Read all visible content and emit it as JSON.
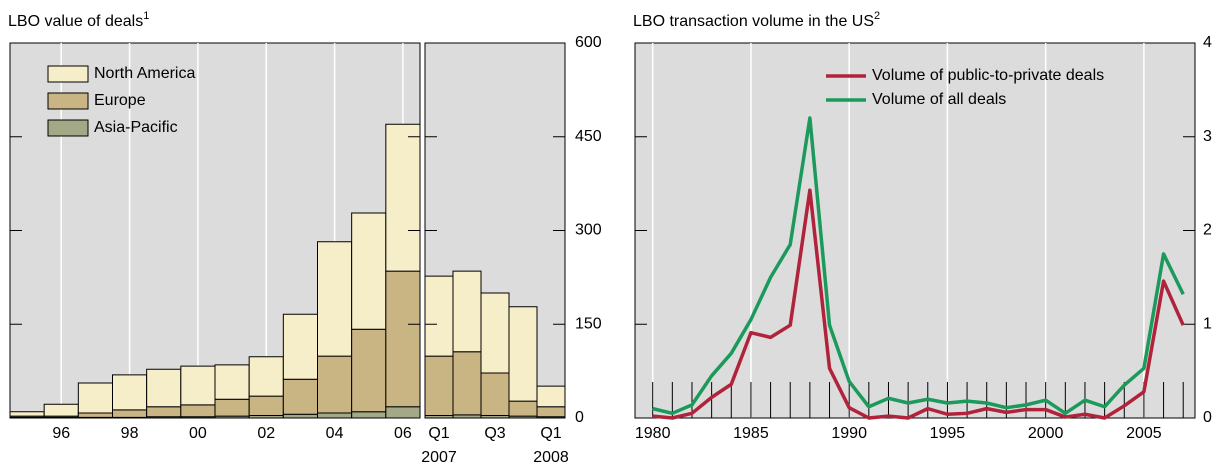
{
  "chart_data": [
    {
      "type": "stacked_bar",
      "title": "LBO value of deals",
      "title_footnote": "1",
      "categories": [
        null,
        "96",
        null,
        "98",
        null,
        "00",
        null,
        "02",
        null,
        "04",
        null,
        "06"
      ],
      "series": [
        {
          "name": "Asia-Pacific",
          "color": "#a3a986",
          "values": [
            1,
            1,
            1,
            1,
            2,
            2,
            3,
            4,
            6,
            8,
            10,
            18
          ]
        },
        {
          "name": "Europe",
          "color": "#c9b584",
          "values": [
            2,
            2,
            7,
            12,
            16,
            19,
            27,
            31,
            56,
            91,
            132,
            217
          ]
        },
        {
          "name": "North America",
          "color": "#f6eec9",
          "values": [
            7,
            19,
            48,
            56,
            60,
            62,
            55,
            63,
            104,
            183,
            186,
            235
          ]
        }
      ],
      "ylim": [
        0,
        600
      ],
      "grid": true
    },
    {
      "type": "stacked_bar",
      "categories": [
        "Q1",
        null,
        "Q3",
        null,
        "Q1"
      ],
      "category_years": [
        "2007",
        null,
        null,
        null,
        "2008"
      ],
      "series": [
        {
          "color": "#a3a986",
          "values": [
            4,
            5,
            4,
            3,
            2
          ]
        },
        {
          "color": "#c9b584",
          "values": [
            95,
            101,
            68,
            24,
            16
          ]
        },
        {
          "color": "#f6eec9",
          "values": [
            128,
            129,
            128,
            151,
            33
          ]
        }
      ],
      "ylim": [
        0,
        600
      ],
      "yticks": [
        0,
        150,
        300,
        450,
        600
      ]
    },
    {
      "type": "line",
      "title": "LBO transaction volume in the US",
      "title_footnote": "2",
      "x": [
        1980,
        1981,
        1982,
        1983,
        1984,
        1985,
        1986,
        1987,
        1988,
        1989,
        1990,
        1991,
        1992,
        1993,
        1994,
        1995,
        1996,
        1997,
        1998,
        1999,
        2000,
        2001,
        2002,
        2003,
        2004,
        2005,
        2006,
        2007
      ],
      "series": [
        {
          "name": "Volume of public-to-private deals",
          "color": "#b0233a",
          "values": [
            0.02,
            0,
            0.05,
            0.22,
            0.36,
            0.91,
            0.86,
            0.99,
            2.43,
            0.53,
            0.11,
            0,
            0.02,
            0,
            0.1,
            0.04,
            0.05,
            0.1,
            0.06,
            0.09,
            0.09,
            0.01,
            0.04,
            0,
            0.13,
            0.28,
            1.46,
            0.99
          ]
        },
        {
          "name": "Volume of all deals",
          "color": "#1b9a5c",
          "values": [
            0.1,
            0.05,
            0.14,
            0.45,
            0.69,
            1.05,
            1.5,
            1.85,
            3.2,
            0.99,
            0.39,
            0.12,
            0.21,
            0.16,
            0.2,
            0.16,
            0.18,
            0.16,
            0.11,
            0.14,
            0.19,
            0.05,
            0.19,
            0.12,
            0.35,
            0.53,
            1.75,
            1.32
          ]
        }
      ],
      "xlim": [
        1979.1,
        2007.6
      ],
      "xticks": [
        1980,
        1985,
        1990,
        1995,
        2000,
        2005
      ],
      "ylim": [
        0,
        4
      ],
      "yticks": [
        0,
        1,
        2,
        3,
        4
      ],
      "grid": true
    }
  ]
}
